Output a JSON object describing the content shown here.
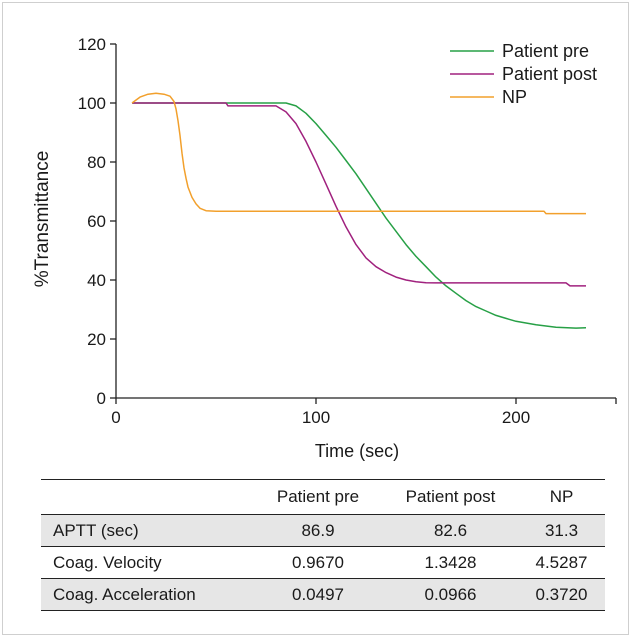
{
  "chart_data": {
    "type": "line",
    "title": "",
    "xlabel": "Time (sec)",
    "ylabel": "%Transmittance",
    "xlim": [
      0,
      250
    ],
    "ylim": [
      0,
      120
    ],
    "x_ticks": [
      0,
      100,
      200
    ],
    "y_ticks": [
      0,
      20,
      40,
      60,
      80,
      100,
      120
    ],
    "legend_position": "top-right",
    "series": [
      {
        "name": "Patient pre",
        "color": "#27a046",
        "x": [
          8,
          30,
          60,
          80,
          85,
          90,
          95,
          100,
          105,
          110,
          115,
          120,
          125,
          130,
          135,
          140,
          145,
          150,
          155,
          160,
          165,
          170,
          175,
          180,
          185,
          190,
          195,
          200,
          210,
          220,
          230,
          235
        ],
        "y": [
          100,
          100,
          100,
          100,
          100,
          99,
          96.5,
          93,
          89,
          85,
          80.5,
          76,
          71,
          66,
          61,
          56.5,
          52,
          48,
          44.5,
          41,
          38,
          35.5,
          33,
          31,
          29.5,
          28,
          27,
          26,
          24.8,
          24,
          23.7,
          23.8
        ]
      },
      {
        "name": "Patient post",
        "color": "#a0217e",
        "x": [
          8,
          55,
          56,
          80,
          85,
          90,
          95,
          100,
          105,
          110,
          115,
          120,
          125,
          130,
          135,
          140,
          145,
          150,
          155,
          160,
          170,
          180,
          200,
          220,
          225,
          227,
          235
        ],
        "y": [
          100,
          100,
          99,
          99,
          97,
          93,
          87,
          80,
          72.5,
          65,
          58,
          52,
          47.5,
          44.5,
          42.5,
          41,
          40,
          39.4,
          39.1,
          39,
          39,
          39,
          39,
          39,
          39,
          38,
          38
        ]
      },
      {
        "name": "NP",
        "color": "#f2a02c",
        "x": [
          8,
          12,
          16,
          20,
          24,
          27,
          29,
          30,
          31,
          32,
          33,
          34,
          35,
          36,
          38,
          40,
          42,
          45,
          50,
          60,
          80,
          100,
          150,
          200,
          214,
          215,
          235
        ],
        "y": [
          100,
          102,
          103,
          103.3,
          103,
          102.3,
          100.5,
          98,
          94,
          89,
          83,
          78,
          74.5,
          71.5,
          68,
          65.8,
          64.3,
          63.5,
          63.3,
          63.3,
          63.3,
          63.3,
          63.3,
          63.3,
          63.3,
          62.5,
          62.5
        ]
      }
    ]
  },
  "table": {
    "headers": [
      "",
      "Patient pre",
      "Patient post",
      "NP"
    ],
    "rows": [
      {
        "label": "APTT (sec)",
        "values": [
          "86.9",
          "82.6",
          "31.3"
        ]
      },
      {
        "label": "Coag. Velocity",
        "values": [
          "0.9670",
          "1.3428",
          "4.5287"
        ]
      },
      {
        "label": "Coag. Acceleration",
        "values": [
          "0.0497",
          "0.0966",
          "0.3720"
        ]
      }
    ]
  }
}
